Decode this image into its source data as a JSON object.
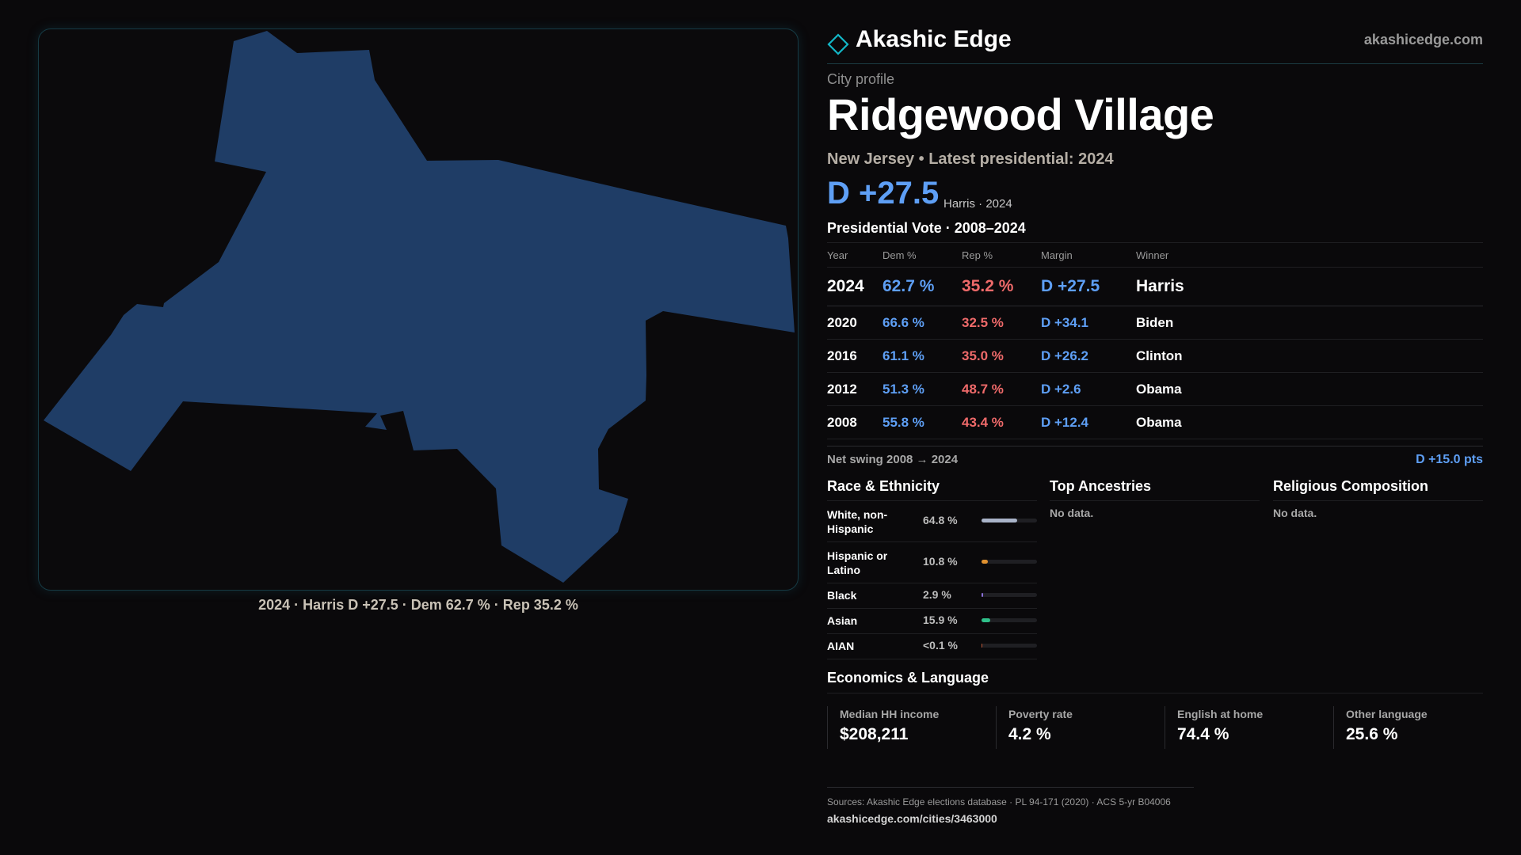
{
  "map": {
    "caption": "2024 · Harris D +27.5 · Dem 62.7 % · Rep 35.2 %",
    "fill_color": "#1f3d66"
  },
  "brand": {
    "name": "Akashic Edge",
    "url": "akashicedge.com",
    "logo_icon": "diamond-outline-icon",
    "accent": "#13b8c8"
  },
  "profile": {
    "kicker": "City profile",
    "title": "Ridgewood Village",
    "subtitle": "New Jersey • Latest presidential: 2024",
    "hero_margin": "D +27.5",
    "hero_note": "Harris · 2024"
  },
  "vote": {
    "section_title": "Presidential Vote · 2008–2024",
    "headers": {
      "year": "Year",
      "dem": "Dem %",
      "rep": "Rep %",
      "margin": "Margin",
      "winner": "Winner"
    },
    "rows": [
      {
        "year": "2024",
        "dem": "62.7 %",
        "rep": "35.2 %",
        "margin": "D +27.5",
        "winner": "Harris"
      },
      {
        "year": "2020",
        "dem": "66.6 %",
        "rep": "32.5 %",
        "margin": "D +34.1",
        "winner": "Biden"
      },
      {
        "year": "2016",
        "dem": "61.1 %",
        "rep": "35.0 %",
        "margin": "D +26.2",
        "winner": "Clinton"
      },
      {
        "year": "2012",
        "dem": "51.3 %",
        "rep": "48.7 %",
        "margin": "D +2.6",
        "winner": "Obama"
      },
      {
        "year": "2008",
        "dem": "55.8 %",
        "rep": "43.4 %",
        "margin": "D +12.4",
        "winner": "Obama"
      }
    ],
    "swing_label": "Net swing 2008 → 2024",
    "swing_value": "D +15.0 pts",
    "colors": {
      "dem": "#5e9ff5",
      "rep": "#ef6a6a"
    }
  },
  "race": {
    "title": "Race & Ethnicity",
    "rows": [
      {
        "label": "White, non-Hispanic",
        "pct": "64.8 %",
        "value": 64.8,
        "color": "#a9b3c8"
      },
      {
        "label": "Hispanic or Latino",
        "pct": "10.8 %",
        "value": 10.8,
        "color": "#e0912f"
      },
      {
        "label": "Black",
        "pct": "2.9 %",
        "value": 2.9,
        "color": "#8a6fd8"
      },
      {
        "label": "Asian",
        "pct": "15.9 %",
        "value": 15.9,
        "color": "#2fc08a"
      },
      {
        "label": "AIAN",
        "pct": "<0.1 %",
        "value": 0.05,
        "color": "#c05a3a"
      }
    ]
  },
  "ancestries": {
    "title": "Top Ancestries",
    "empty": "No data."
  },
  "religion": {
    "title": "Religious Composition",
    "empty": "No data."
  },
  "economics": {
    "title": "Economics & Language",
    "cards": [
      {
        "label": "Median HH income",
        "value": "$208,211"
      },
      {
        "label": "Poverty rate",
        "value": "4.2 %"
      },
      {
        "label": "English at home",
        "value": "74.4 %"
      },
      {
        "label": "Other language",
        "value": "25.6 %"
      }
    ]
  },
  "footer": {
    "sources": "Sources: Akashic Edge elections database · PL 94-171 (2020) · ACS 5-yr B04006",
    "url": "akashicedge.com/cities/3463000"
  }
}
